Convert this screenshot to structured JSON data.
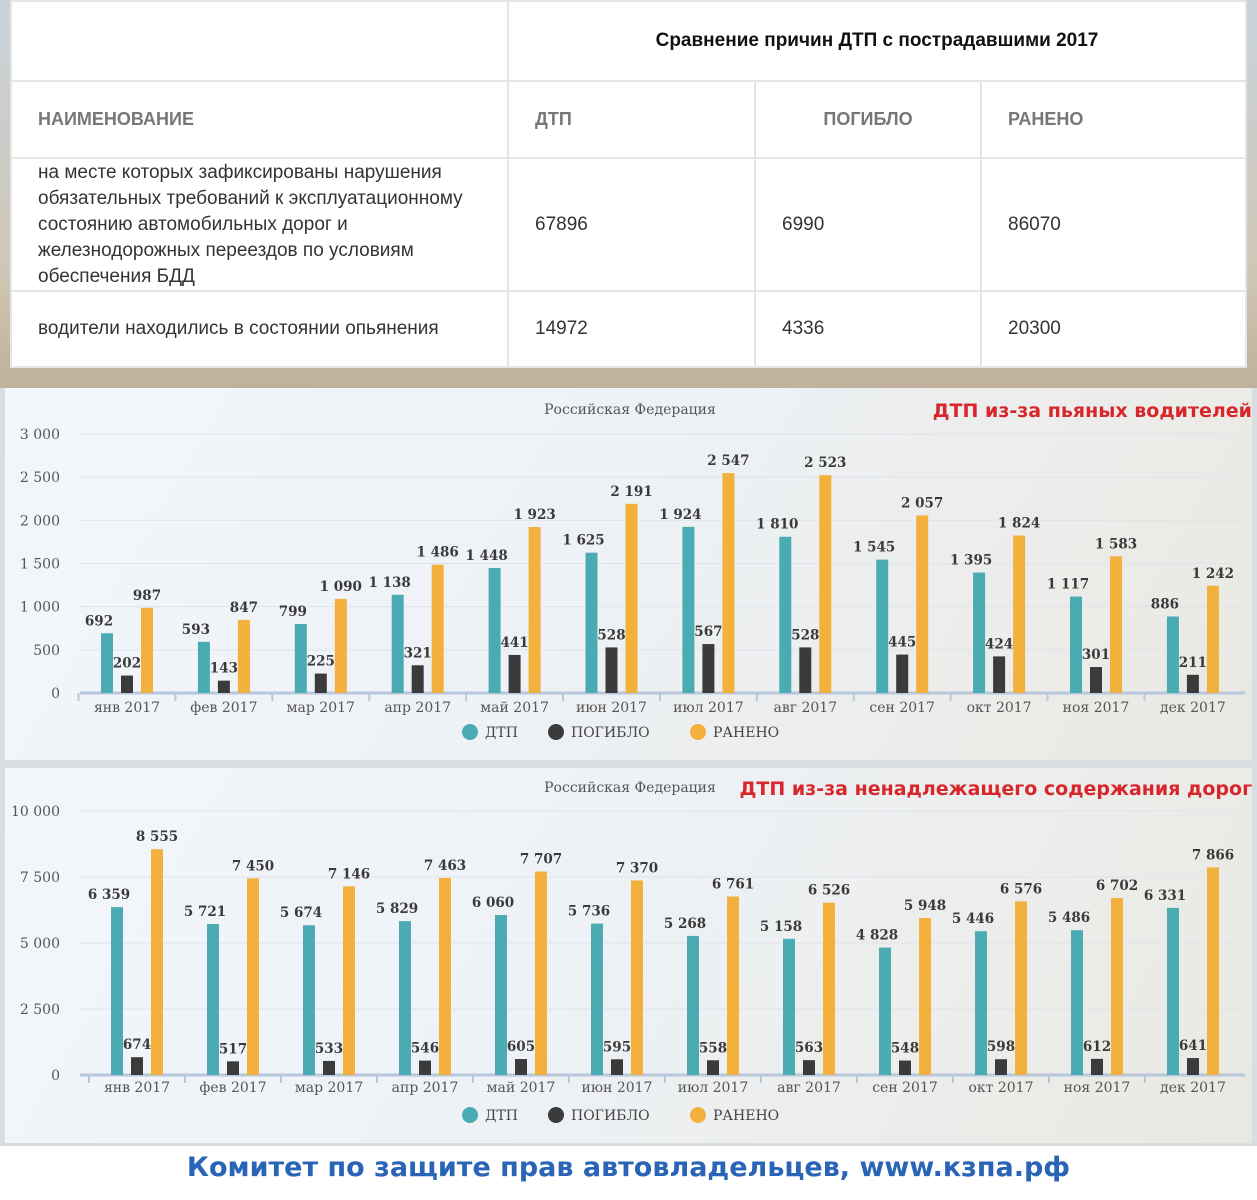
{
  "table": {
    "title": "Сравнение причин ДТП с пострадавшими 2017",
    "headers": [
      "НАИМЕНОВАНИЕ",
      "ДТП",
      "ПОГИБЛО",
      "РАНЕНО"
    ],
    "rows": [
      {
        "name": "на месте которых зафиксированы нарушения обязательных требований к эксплуатационному состоянию автомобильных дорог и железнодорожных переездов по условиям обеспечения БДД",
        "dtp": "67896",
        "killed": "6990",
        "injured": "86070"
      },
      {
        "name": "водители находились в состоянии опьянения",
        "dtp": "14972",
        "killed": "4336",
        "injured": "20300"
      }
    ]
  },
  "chart_data": [
    {
      "type": "bar",
      "title": "ДТП из-за пьяных водителей",
      "subtitle": "Российская Федерация",
      "categories": [
        "янв 2017",
        "фев 2017",
        "мар 2017",
        "апр 2017",
        "май 2017",
        "июн 2017",
        "июл 2017",
        "авг 2017",
        "сен 2017",
        "окт 2017",
        "ноя 2017",
        "дек 2017"
      ],
      "series": [
        {
          "name": "ДТП",
          "color": "#4aacb2",
          "values": [
            692,
            593,
            799,
            1138,
            1448,
            1625,
            1924,
            1810,
            1545,
            1395,
            1117,
            886
          ]
        },
        {
          "name": "ПОГИБЛО",
          "color": "#3b3b3b",
          "values": [
            202,
            143,
            225,
            321,
            441,
            528,
            567,
            528,
            445,
            424,
            301,
            211
          ]
        },
        {
          "name": "РАНЕНО",
          "color": "#f2b03c",
          "values": [
            987,
            847,
            1090,
            1486,
            1923,
            2191,
            2547,
            2523,
            2057,
            1824,
            1583,
            1242
          ]
        }
      ],
      "yticks": [
        "0",
        "500",
        "1 000",
        "1 500",
        "2 000",
        "2 500",
        "3 000"
      ],
      "ylim": [
        0,
        3000
      ],
      "legend": "bottom",
      "grid": true
    },
    {
      "type": "bar",
      "title": "ДТП из-за ненадлежащего содержания дорог",
      "subtitle": "Российская Федерация",
      "categories": [
        "янв 2017",
        "фев 2017",
        "мар 2017",
        "апр 2017",
        "май 2017",
        "июн 2017",
        "июл 2017",
        "авг 2017",
        "сен 2017",
        "окт 2017",
        "ноя 2017",
        "дек 2017"
      ],
      "series": [
        {
          "name": "ДТП",
          "color": "#4aacb2",
          "values": [
            6359,
            5721,
            5674,
            5829,
            6060,
            5736,
            5268,
            5158,
            4828,
            5446,
            5486,
            6331
          ]
        },
        {
          "name": "ПОГИБЛО",
          "color": "#3b3b3b",
          "values": [
            674,
            517,
            533,
            546,
            605,
            595,
            558,
            563,
            548,
            598,
            612,
            641
          ]
        },
        {
          "name": "РАНЕНО",
          "color": "#f2b03c",
          "values": [
            8555,
            7450,
            7146,
            7463,
            7707,
            7370,
            6761,
            6526,
            5948,
            6576,
            6702,
            7866
          ]
        }
      ],
      "yticks": [
        "0",
        "2 500",
        "5 000",
        "7 500",
        "10 000"
      ],
      "ylim": [
        0,
        10000
      ],
      "legend": "bottom",
      "grid": true
    }
  ],
  "footer": "Комитет по защите прав автовладельцев, www.кзпа.рф"
}
